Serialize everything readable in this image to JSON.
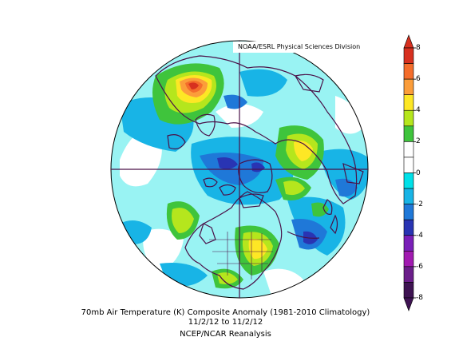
{
  "credit": "NOAA/ESRL Physical Sciences Division",
  "caption": {
    "line1": "70mb Air Temperature (K) Composite Anomaly (1981-2010 Climatology)",
    "line2": "11/2/12  to 11/2/12",
    "line3": "NCEP/NCAR Reanalysis"
  },
  "colorbar": {
    "ticks": [
      "8",
      "6",
      "4",
      "2",
      "0",
      "-2",
      "-4",
      "-6",
      "-8"
    ],
    "colors": [
      "#d7301f",
      "#f46d2b",
      "#fb9d3a",
      "#fde725",
      "#b5e61d",
      "#3fc43c",
      "#ffffff",
      "#ffffff",
      "#00e0e8",
      "#18b4e6",
      "#1f78d8",
      "#2934b3",
      "#7a1fb8",
      "#a11ab0",
      "#6b1e8a",
      "#3e1352"
    ]
  },
  "map": {
    "projection": "polar stereographic",
    "hemisphere": "north"
  }
}
